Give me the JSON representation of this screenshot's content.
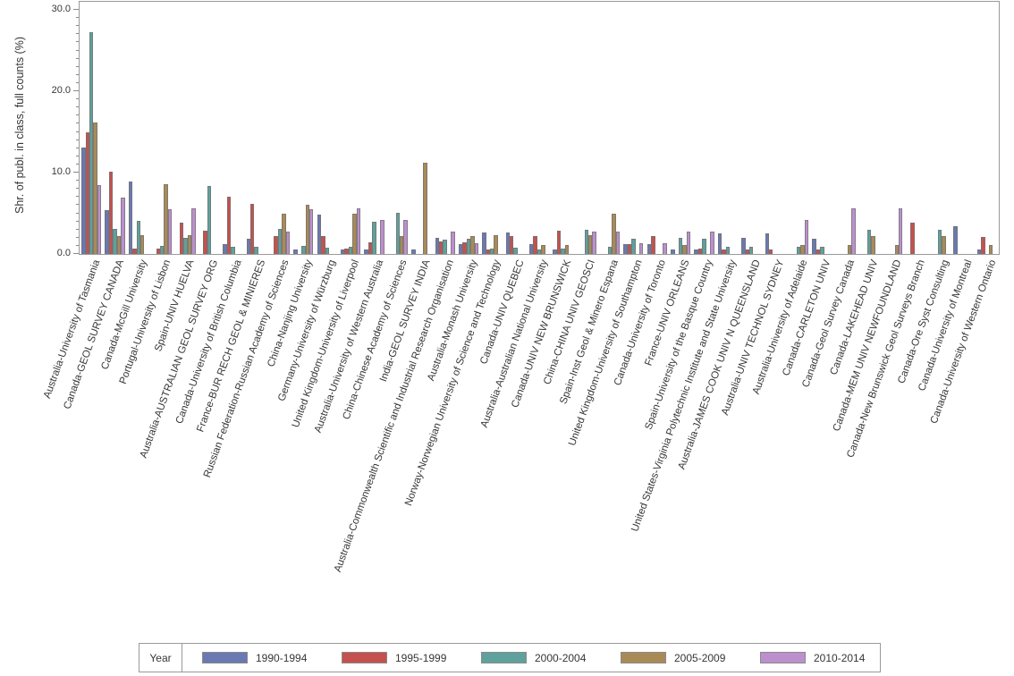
{
  "y_axis": {
    "title": "Shr. of publ. in class, full counts (%)",
    "tick_labels": [
      "0.0",
      "10.0",
      "20.0",
      "30.0"
    ]
  },
  "legend": {
    "title": "Year",
    "position": "bottom"
  },
  "chart_data": {
    "type": "bar",
    "title": "",
    "xlabel": "",
    "ylabel": "Shr. of publ. in class, full counts (%)",
    "ylim": [
      0,
      30
    ],
    "y_major_ticks": [
      0,
      10,
      20,
      30
    ],
    "y_tick_labels": [
      "0.0",
      "10.0",
      "20.0",
      "30.0"
    ],
    "y_minor_tick_step": 1,
    "grid": false,
    "legend_position": "bottom",
    "legend_title": "Year",
    "frame_color": "#9a9a9a",
    "text_color": "#363636",
    "categories": [
      "Australia-University of Tasmania",
      "Canada-GEOL SURVEY CANADA",
      "Canada-McGill University",
      "Portugal-University of Lisbon",
      "Spain-UNIV HUELVA",
      "Australia-AUSTRALIAN GEOL SURVEY ORG",
      "Canada-University of British Columbia",
      "France-BUR RECH GEOL & MINIERES",
      "Russian Federation-Russian Academy of Sciences",
      "China-Nanjing University",
      "Germany-University of Würzburg",
      "United Kingdom-University of Liverpool",
      "Australia-University of Western Australia",
      "China-Chinese Academy of Sciences",
      "India-GEOL SURVEY INDIA",
      "Australia-Commonwealth Scientific and Industrial Research Organisation",
      "Australia-Monash University",
      "Norway-Norwegian University of Science and Technology",
      "Canada-UNIV QUEBEC",
      "Australia-Australian National University",
      "Canada-UNIV NEW BRUNSWICK",
      "China-CHINA UNIV GEOSCI",
      "Spain-Inst Geol & Minero Espana",
      "United Kingdom-University of Southampton",
      "Canada-University of Toronto",
      "France-UNIV ORLEANS",
      "Spain-University of the Basque Country",
      "United States-Virginia Polytechnic Institute and State University",
      "Australia-JAMES COOK UNIV N QUEENSLAND",
      "Australia-UNIV TECHNOL SYDNEY",
      "Australia-University of Adelaide",
      "Canada-CARLETON UNIV",
      "Canada-Geol Survey Canada",
      "Canada-LAKEHEAD UNIV",
      "Canada-MEM UNIV NEWFOUNDLAND",
      "Canada-New Brunswick Geol Surveys Branch",
      "Canada-Ore Syst Consulting",
      "Canada-University of Montreal",
      "Canada-University of Western Ontario"
    ],
    "series": [
      {
        "name": "1990-1994",
        "color": "#6A79B1",
        "values": [
          13.1,
          5.4,
          8.9,
          0,
          0,
          0,
          1.2,
          1.9,
          0,
          0.6,
          4.8,
          0.5,
          0.5,
          0,
          0.6,
          2.0,
          1.2,
          2.6,
          2.6,
          1.2,
          0.5,
          0,
          0,
          1.2,
          1.2,
          0.5,
          0.6,
          2.5,
          2.0,
          2.5,
          0,
          1.9,
          0,
          0,
          0,
          0,
          0,
          3.4,
          0.6
        ]
      },
      {
        "name": "1995-1999",
        "color": "#C5514E",
        "values": [
          14.9,
          10.1,
          0.7,
          0.7,
          3.8,
          2.9,
          7.0,
          6.2,
          2.2,
          0,
          2.2,
          0.7,
          1.4,
          0,
          0,
          1.5,
          1.4,
          0.5,
          2.2,
          2.2,
          2.9,
          0,
          0,
          1.2,
          2.2,
          0,
          0.7,
          0.6,
          0.6,
          0.5,
          0,
          0.5,
          0,
          0,
          0,
          3.8,
          0,
          0,
          2.1
        ]
      },
      {
        "name": "2000-2004",
        "color": "#5FA19C",
        "values": [
          27.3,
          3.1,
          4.1,
          1.0,
          2.0,
          8.3,
          0.9,
          0.9,
          3.1,
          1.0,
          0.8,
          0.9,
          4.0,
          5.1,
          0,
          1.8,
          1.9,
          0.7,
          0.8,
          0.5,
          0.7,
          3.0,
          0.9,
          1.9,
          0,
          2.0,
          1.9,
          0.9,
          0.9,
          0,
          0.9,
          0.9,
          0,
          3.0,
          0,
          0,
          3.0,
          0,
          0
        ]
      },
      {
        "name": "2005-2009",
        "color": "#A98A57",
        "values": [
          16.2,
          2.2,
          2.3,
          8.6,
          2.3,
          0,
          0,
          0,
          4.9,
          6.0,
          0,
          4.9,
          0,
          2.2,
          11.2,
          0,
          2.2,
          2.3,
          0,
          1.1,
          1.1,
          2.3,
          4.9,
          0,
          0,
          1.1,
          0,
          0,
          0,
          0,
          1.1,
          0,
          1.1,
          2.2,
          1.1,
          0,
          2.2,
          0,
          1.1
        ]
      },
      {
        "name": "2010-2014",
        "color": "#BC90CD",
        "values": [
          8.5,
          6.9,
          0,
          5.5,
          5.6,
          0,
          0,
          0,
          2.7,
          5.5,
          0,
          5.6,
          4.2,
          4.2,
          0,
          2.7,
          1.3,
          0,
          0,
          0,
          0,
          2.7,
          2.7,
          1.3,
          1.3,
          2.7,
          2.7,
          0,
          0,
          0,
          4.2,
          0,
          5.6,
          0,
          5.6,
          0,
          0,
          0,
          0
        ]
      }
    ]
  }
}
